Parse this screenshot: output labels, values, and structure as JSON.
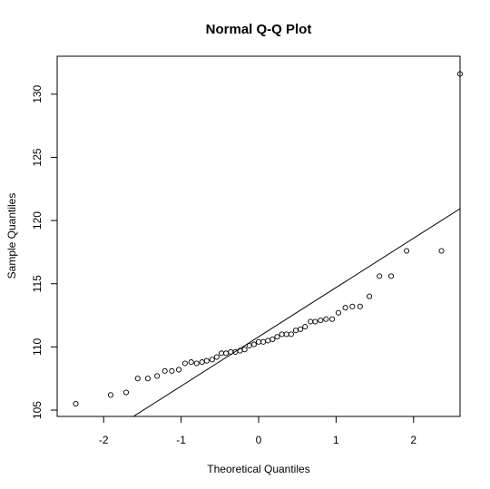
{
  "chart_data": {
    "type": "scatter",
    "title": "Normal Q-Q Plot",
    "xlabel": "Theoretical Quantiles",
    "ylabel": "Sample Quantiles",
    "xlim": [
      -2.6,
      2.6
    ],
    "ylim": [
      104.5,
      133.0
    ],
    "x_ticks": [
      -2,
      -1,
      0,
      1,
      2
    ],
    "x_tick_labels": [
      "-2",
      "-1",
      "0",
      "1",
      "2"
    ],
    "y_ticks": [
      105,
      110,
      115,
      120,
      125,
      130
    ],
    "y_tick_labels": [
      "105",
      "110",
      "115",
      "120",
      "125",
      "130"
    ],
    "grid": false,
    "point_style": "open-circle",
    "reference_line": {
      "slope": 3.9,
      "intercept": 110.8
    },
    "points": [
      {
        "x": -2.36,
        "y": 105.5
      },
      {
        "x": -1.91,
        "y": 106.2
      },
      {
        "x": -1.71,
        "y": 106.4
      },
      {
        "x": -1.56,
        "y": 107.5
      },
      {
        "x": -1.43,
        "y": 107.5
      },
      {
        "x": -1.31,
        "y": 107.7
      },
      {
        "x": -1.21,
        "y": 108.1
      },
      {
        "x": -1.12,
        "y": 108.1
      },
      {
        "x": -1.03,
        "y": 108.2
      },
      {
        "x": -0.95,
        "y": 108.7
      },
      {
        "x": -0.87,
        "y": 108.8
      },
      {
        "x": -0.8,
        "y": 108.7
      },
      {
        "x": -0.73,
        "y": 108.8
      },
      {
        "x": -0.67,
        "y": 108.9
      },
      {
        "x": -0.6,
        "y": 109.0
      },
      {
        "x": -0.54,
        "y": 109.2
      },
      {
        "x": -0.48,
        "y": 109.5
      },
      {
        "x": -0.42,
        "y": 109.5
      },
      {
        "x": -0.36,
        "y": 109.6
      },
      {
        "x": -0.3,
        "y": 109.6
      },
      {
        "x": -0.24,
        "y": 109.7
      },
      {
        "x": -0.18,
        "y": 109.8
      },
      {
        "x": -0.12,
        "y": 110.1
      },
      {
        "x": -0.06,
        "y": 110.2
      },
      {
        "x": 0.0,
        "y": 110.4
      },
      {
        "x": 0.06,
        "y": 110.4
      },
      {
        "x": 0.12,
        "y": 110.5
      },
      {
        "x": 0.18,
        "y": 110.6
      },
      {
        "x": 0.24,
        "y": 110.8
      },
      {
        "x": 0.3,
        "y": 111.0
      },
      {
        "x": 0.36,
        "y": 111.0
      },
      {
        "x": 0.42,
        "y": 111.0
      },
      {
        "x": 0.48,
        "y": 111.3
      },
      {
        "x": 0.54,
        "y": 111.4
      },
      {
        "x": 0.6,
        "y": 111.6
      },
      {
        "x": 0.67,
        "y": 112.0
      },
      {
        "x": 0.73,
        "y": 112.0
      },
      {
        "x": 0.8,
        "y": 112.1
      },
      {
        "x": 0.87,
        "y": 112.2
      },
      {
        "x": 0.95,
        "y": 112.2
      },
      {
        "x": 1.03,
        "y": 112.7
      },
      {
        "x": 1.12,
        "y": 113.1
      },
      {
        "x": 1.21,
        "y": 113.2
      },
      {
        "x": 1.31,
        "y": 113.2
      },
      {
        "x": 1.43,
        "y": 114.0
      },
      {
        "x": 1.56,
        "y": 115.6
      },
      {
        "x": 1.71,
        "y": 115.6
      },
      {
        "x": 1.91,
        "y": 117.6
      },
      {
        "x": 2.36,
        "y": 117.6
      },
      {
        "x": 2.6,
        "y": 131.6
      }
    ]
  }
}
